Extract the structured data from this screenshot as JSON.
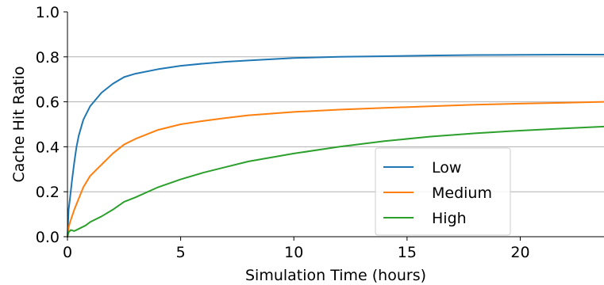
{
  "chart_data": {
    "type": "line",
    "xlabel": "Simulation Time (hours)",
    "ylabel": "Cache Hit Ratio",
    "xlim": [
      0,
      23.7
    ],
    "ylim": [
      0.0,
      1.0
    ],
    "x_ticks": [
      0,
      5,
      10,
      15,
      20
    ],
    "x_tick_labels": [
      "0",
      "5",
      "10",
      "15",
      "20"
    ],
    "y_ticks": [
      0.0,
      0.2,
      0.4,
      0.6,
      0.8,
      1.0
    ],
    "y_tick_labels": [
      "0.0",
      "0.2",
      "0.4",
      "0.6",
      "0.8",
      "1.0"
    ],
    "grid": "horizontal",
    "legend_position": "lower-right",
    "series": [
      {
        "name": "Low",
        "color": "#1f77b4",
        "x": [
          0,
          0.05,
          0.1,
          0.2,
          0.3,
          0.4,
          0.5,
          0.7,
          1.0,
          1.5,
          2.0,
          2.5,
          3,
          4,
          5,
          6,
          7,
          8,
          10,
          12,
          14,
          16,
          18,
          20,
          22,
          23.7
        ],
        "y": [
          0.0,
          0.12,
          0.16,
          0.25,
          0.33,
          0.4,
          0.45,
          0.52,
          0.58,
          0.64,
          0.68,
          0.71,
          0.725,
          0.745,
          0.76,
          0.77,
          0.778,
          0.784,
          0.795,
          0.8,
          0.803,
          0.806,
          0.808,
          0.809,
          0.81,
          0.81
        ]
      },
      {
        "name": "Medium",
        "color": "#ff7f0e",
        "x": [
          0,
          0.05,
          0.1,
          0.2,
          0.3,
          0.5,
          0.7,
          1.0,
          1.5,
          2.0,
          2.5,
          3,
          4,
          5,
          6,
          7,
          8,
          10,
          12,
          14,
          16,
          18,
          20,
          22,
          23.7
        ],
        "y": [
          0.0,
          0.04,
          0.06,
          0.09,
          0.12,
          0.17,
          0.22,
          0.27,
          0.32,
          0.37,
          0.41,
          0.435,
          0.475,
          0.5,
          0.515,
          0.528,
          0.54,
          0.555,
          0.565,
          0.573,
          0.58,
          0.587,
          0.592,
          0.596,
          0.6
        ]
      },
      {
        "name": "High",
        "color": "#2ca02c",
        "x": [
          0,
          0.05,
          0.15,
          0.3,
          0.5,
          0.8,
          1.0,
          1.5,
          2.0,
          2.5,
          3,
          4,
          5,
          6,
          7,
          8,
          10,
          12,
          14,
          16,
          18,
          20,
          22,
          23.7
        ],
        "y": [
          0.0,
          0.02,
          0.03,
          0.025,
          0.035,
          0.05,
          0.065,
          0.09,
          0.12,
          0.155,
          0.175,
          0.22,
          0.255,
          0.285,
          0.31,
          0.335,
          0.37,
          0.4,
          0.425,
          0.445,
          0.46,
          0.472,
          0.482,
          0.49
        ]
      }
    ]
  }
}
